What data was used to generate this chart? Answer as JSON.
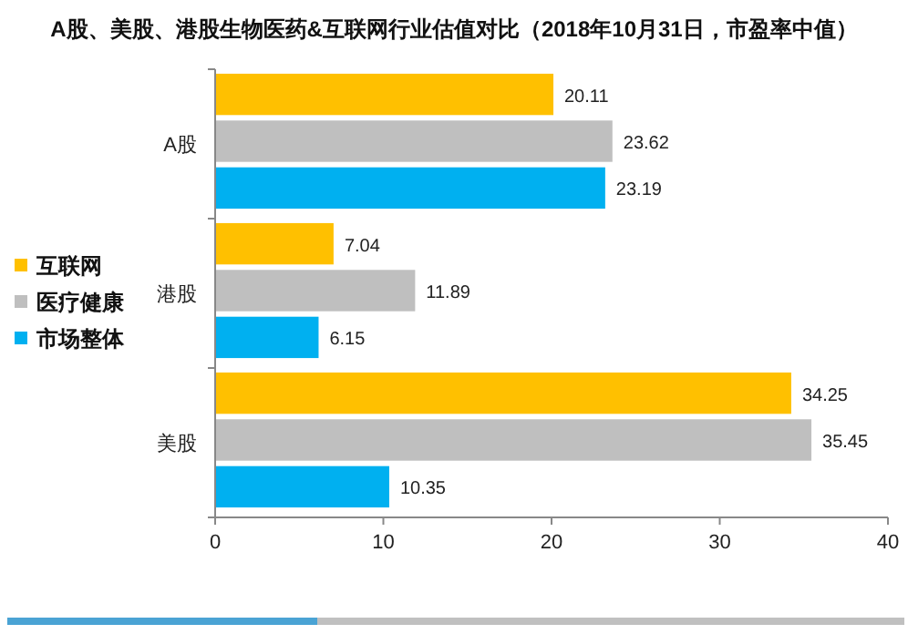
{
  "chart_data": {
    "type": "bar",
    "orientation": "horizontal",
    "title": "A股、美股、港股生物医药&互联网行业估值对比（2018年10月31日，市盈率中值）",
    "categories": [
      "A股",
      "港股",
      "美股"
    ],
    "series": [
      {
        "name": "互联网",
        "color": "#ffc000",
        "values": [
          20.11,
          7.04,
          34.25
        ]
      },
      {
        "name": "医疗健康",
        "color": "#bfbfbf",
        "values": [
          23.62,
          11.89,
          35.45
        ]
      },
      {
        "name": "市场整体",
        "color": "#00b0f0",
        "values": [
          23.19,
          6.15,
          10.35
        ]
      }
    ],
    "xlim": [
      0,
      40
    ],
    "xticks": [
      0,
      10,
      20,
      30,
      40
    ],
    "data_labels": true,
    "legend": "left",
    "grid": false
  }
}
